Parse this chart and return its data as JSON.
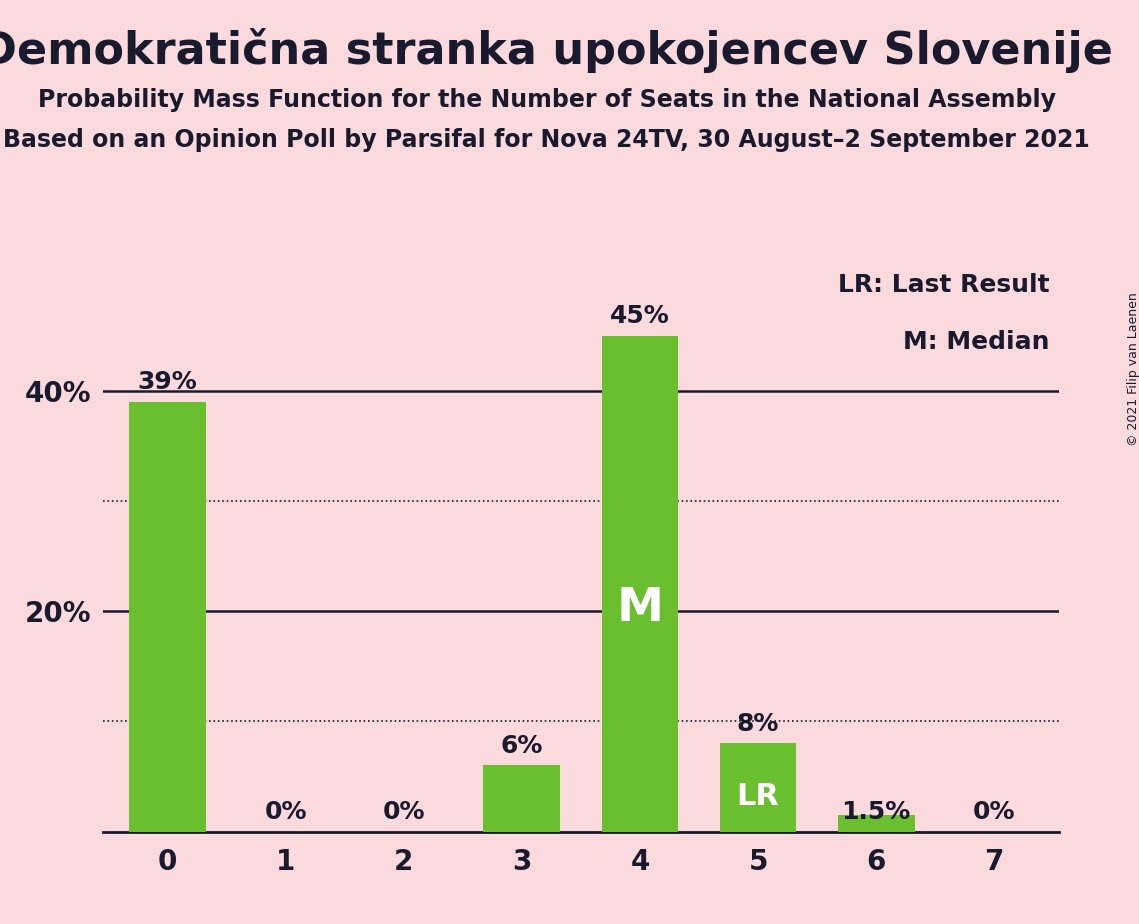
{
  "title": "Demokratična stranka upokojencev Slovenije",
  "subtitle1": "Probability Mass Function for the Number of Seats in the National Assembly",
  "subtitle2": "Based on an Opinion Poll by Parsifal for Nova 24TV, 30 August–2 September 2021",
  "copyright": "© 2021 Filip van Laenen",
  "categories": [
    0,
    1,
    2,
    3,
    4,
    5,
    6,
    7
  ],
  "values": [
    0.39,
    0.0,
    0.0,
    0.06,
    0.45,
    0.08,
    0.015,
    0.0
  ],
  "labels": [
    "39%",
    "0%",
    "0%",
    "6%",
    "45%",
    "8%",
    "1.5%",
    "0%"
  ],
  "bar_color": "#6abf2e",
  "background_color": "#fadadd",
  "text_color": "#1a1a2e",
  "median_bar": 4,
  "lr_bar": 5,
  "median_label": "M",
  "lr_label": "LR",
  "legend_lr": "LR: Last Result",
  "legend_m": "M: Median",
  "solid_lines": [
    0.2,
    0.4
  ],
  "dotted_lines": [
    0.1,
    0.3
  ],
  "ylim": [
    0,
    0.52
  ],
  "title_fontsize": 32,
  "subtitle_fontsize": 17,
  "tick_fontsize": 20,
  "label_fontsize": 18,
  "legend_fontsize": 18,
  "bar_width": 0.65
}
